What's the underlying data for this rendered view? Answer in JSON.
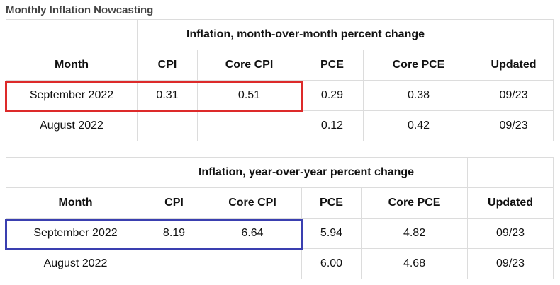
{
  "page": {
    "title": "Monthly Inflation Nowcasting"
  },
  "colors": {
    "highlight_mom": "#dd2a2a",
    "highlight_yoy": "#3a3fb0",
    "grid": "#dcdcdc"
  },
  "mom_table": {
    "group_header": "Inflation, month-over-month percent change",
    "headers": [
      "Month",
      "CPI",
      "Core CPI",
      "PCE",
      "Core PCE",
      "Updated"
    ],
    "rows": [
      [
        "September 2022",
        "0.31",
        "0.51",
        "0.29",
        "0.38",
        "09/23"
      ],
      [
        "August 2022",
        "",
        "",
        "0.12",
        "0.42",
        "09/23"
      ]
    ]
  },
  "yoy_table": {
    "group_header": "Inflation, year-over-year percent change",
    "headers": [
      "Month",
      "CPI",
      "Core CPI",
      "PCE",
      "Core PCE",
      "Updated"
    ],
    "rows": [
      [
        "September 2022",
        "8.19",
        "6.64",
        "5.94",
        "4.82",
        "09/23"
      ],
      [
        "August 2022",
        "",
        "",
        "6.00",
        "4.68",
        "09/23"
      ]
    ]
  }
}
